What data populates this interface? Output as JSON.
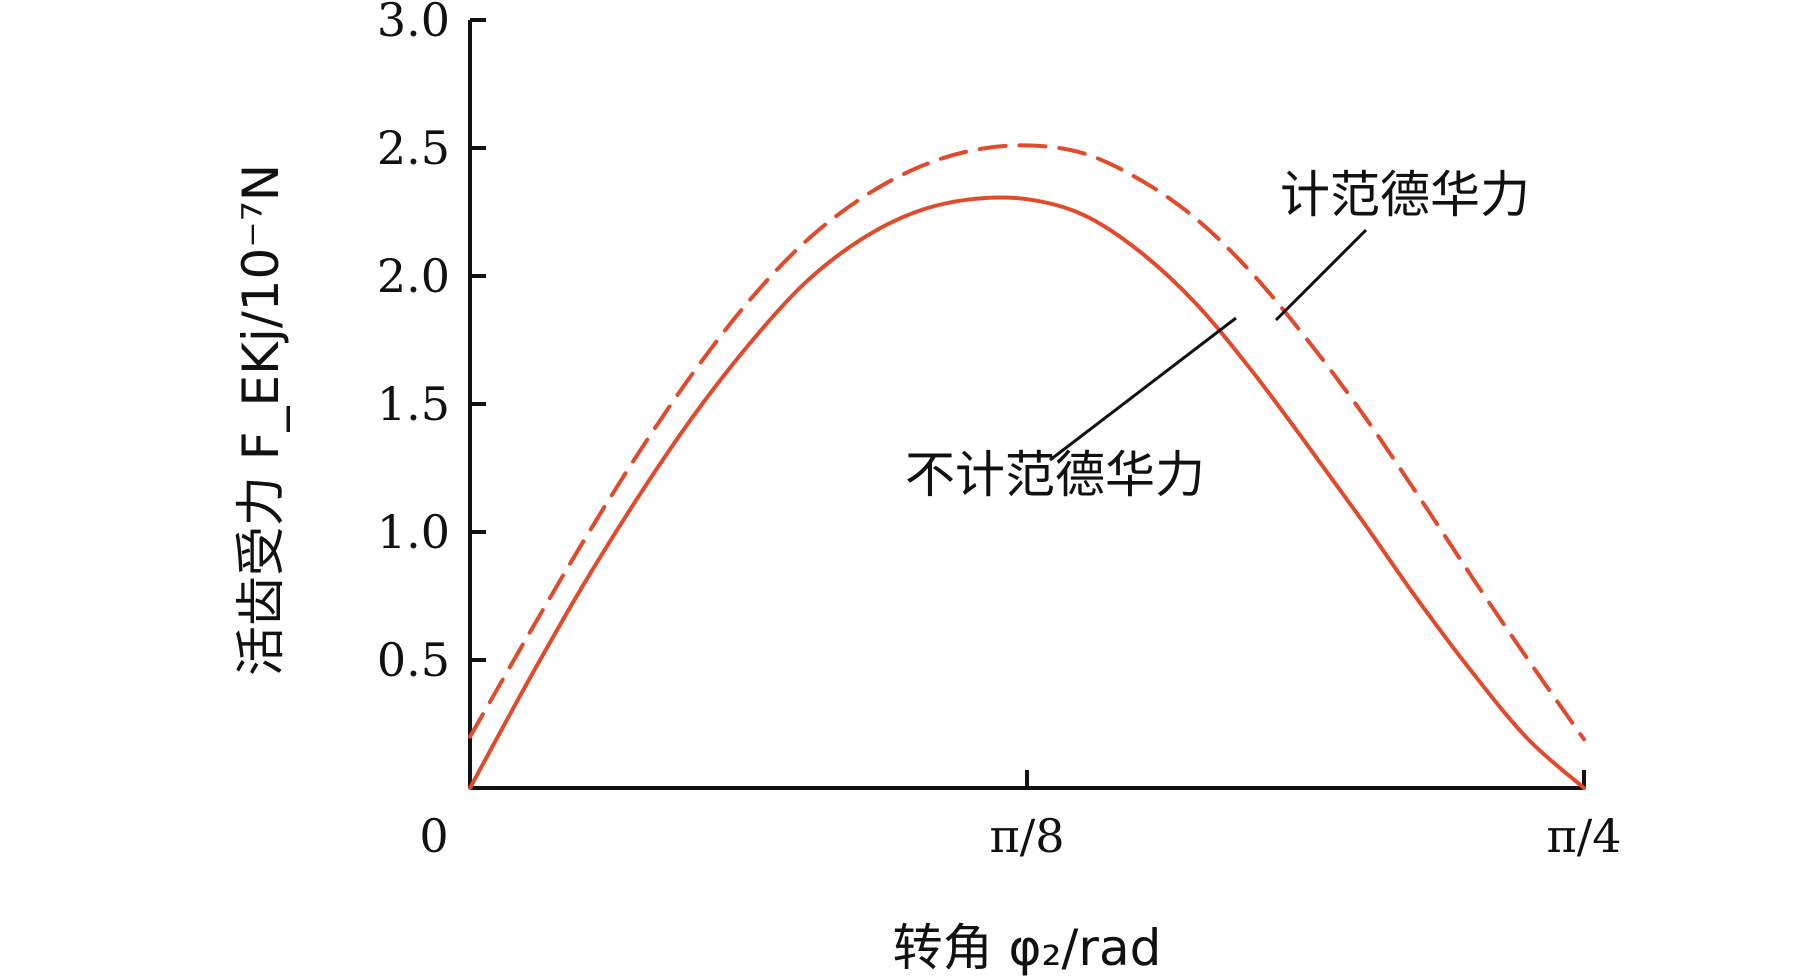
{
  "chart_data": {
    "type": "line",
    "xlabel": "转角 φ₂/rad",
    "ylabel": "活齿受力 F_EKj/10⁻⁷N",
    "x_ticks": [
      "0",
      "π/8",
      "π/4"
    ],
    "x_tick_values": [
      0,
      0.3927,
      0.7854
    ],
    "y_ticks": [
      "0.5",
      "1.0",
      "1.5",
      "2.0",
      "2.5",
      "3.0"
    ],
    "y_tick_values": [
      0.5,
      1.0,
      1.5,
      2.0,
      2.5,
      3.0
    ],
    "xlim": [
      0,
      0.7854
    ],
    "ylim": [
      0,
      3.0
    ],
    "series": [
      {
        "name": "计范德华力",
        "style": "dashed",
        "color": "#e24a2c",
        "x": [
          0,
          0.0393,
          0.0785,
          0.1178,
          0.1571,
          0.1963,
          0.2356,
          0.2749,
          0.3142,
          0.3534,
          0.3927,
          0.432,
          0.4712,
          0.5105,
          0.5498,
          0.589,
          0.6283,
          0.6676,
          0.7069,
          0.7461,
          0.7854
        ],
        "y": [
          0.2,
          0.58,
          0.95,
          1.3,
          1.62,
          1.9,
          2.13,
          2.3,
          2.42,
          2.49,
          2.51,
          2.48,
          2.38,
          2.23,
          2.02,
          1.76,
          1.47,
          1.15,
          0.82,
          0.5,
          0.19
        ]
      },
      {
        "name": "不计范德华力",
        "style": "solid",
        "color": "#e24a2c",
        "x": [
          0,
          0.0393,
          0.0785,
          0.1178,
          0.1571,
          0.1963,
          0.2356,
          0.2749,
          0.3142,
          0.3534,
          0.3927,
          0.432,
          0.4712,
          0.5105,
          0.5498,
          0.589,
          0.6283,
          0.6676,
          0.7069,
          0.7461,
          0.7854
        ],
        "y": [
          0.0,
          0.4,
          0.78,
          1.13,
          1.45,
          1.73,
          1.97,
          2.14,
          2.25,
          2.3,
          2.3,
          2.24,
          2.1,
          1.9,
          1.64,
          1.35,
          1.05,
          0.74,
          0.45,
          0.19,
          0.0
        ]
      }
    ],
    "annotations": [
      {
        "text": "计范德华力",
        "target_series": 0
      },
      {
        "text": "不计范德华力",
        "target_series": 1
      }
    ]
  }
}
